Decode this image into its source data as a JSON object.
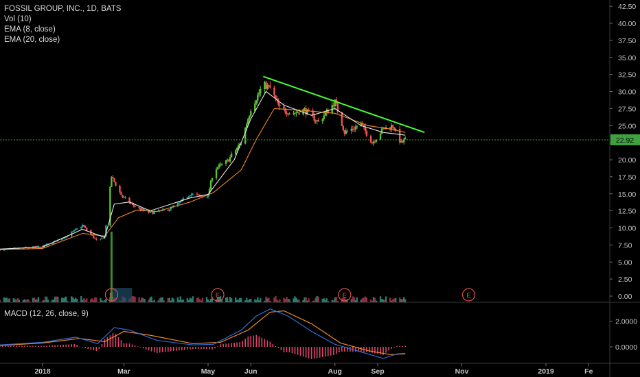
{
  "header": {
    "symbol_line": "FOSSIL GROUP, INC., 1D, BATS",
    "vol_line": "Vol (10)",
    "ema8_line": "EMA (8, close)",
    "ema20_line": "EMA (20, close)"
  },
  "macd": {
    "label": "MACD (12, 26, close, 9)"
  },
  "colors": {
    "background": "#000000",
    "up_candle": "#26a69a",
    "up_candle_bright": "#5bc236",
    "down_candle": "#ef5350",
    "ema8": "#e8e8e8",
    "ema20": "#f08a24",
    "trendline": "#44ff33",
    "last_price": "#3fa03f",
    "macd_line": "#2f6fd6",
    "signal_line": "#f08a24",
    "macd_hist": "#e0446c",
    "earnings": "#e0544c"
  },
  "chart_data": [
    {
      "type": "candlestick",
      "title": "FOSSIL GROUP, INC., 1D, BATS",
      "y_tick_labels": [
        "42.50",
        "40.00",
        "37.50",
        "35.00",
        "32.50",
        "30.00",
        "27.50",
        "25.00",
        "22.50",
        "20.00",
        "17.50",
        "15.00",
        "12.50",
        "10.00",
        "7.50",
        "5.00",
        "2.50",
        "0.00"
      ],
      "ylim": [
        0,
        42.5
      ],
      "x_tick_labels": [
        "2018",
        "Mar",
        "May",
        "Jun",
        "Aug",
        "Sep",
        "Nov",
        "2019",
        "Fe"
      ],
      "x_tick_dates": [
        "2018-01-01",
        "2018-03-01",
        "2018-05-01",
        "2018-06-01",
        "2018-08-01",
        "2018-09-01",
        "2018-11-01",
        "2019-01-01",
        "2019-02-01"
      ],
      "last_price": 22.92,
      "last_price_label": "22.92",
      "series": [
        {
          "name": "EMA (8, close)",
          "kind": "line"
        },
        {
          "name": "EMA (20, close)",
          "kind": "line"
        },
        {
          "name": "Vol (10)",
          "kind": "volume"
        }
      ],
      "price_path": [
        [
          "2017-12-01",
          6.8
        ],
        [
          "2017-12-15",
          7.0
        ],
        [
          "2018-01-01",
          7.3
        ],
        [
          "2018-01-10",
          8.0
        ],
        [
          "2018-01-20",
          9.0
        ],
        [
          "2018-01-30",
          10.4
        ],
        [
          "2018-02-05",
          9.0
        ],
        [
          "2018-02-10",
          8.0
        ],
        [
          "2018-02-15",
          8.7
        ],
        [
          "2018-02-20",
          17.5
        ],
        [
          "2018-02-28",
          14.5
        ],
        [
          "2018-03-10",
          13.0
        ],
        [
          "2018-03-20",
          12.2
        ],
        [
          "2018-04-01",
          12.6
        ],
        [
          "2018-04-10",
          13.6
        ],
        [
          "2018-04-18",
          15.0
        ],
        [
          "2018-04-28",
          14.5
        ],
        [
          "2018-05-01",
          14.8
        ],
        [
          "2018-05-05",
          18.5
        ],
        [
          "2018-05-15",
          19.8
        ],
        [
          "2018-05-25",
          22.5
        ],
        [
          "2018-06-01",
          27.5
        ],
        [
          "2018-06-10",
          31.0
        ],
        [
          "2018-06-15",
          30.5
        ],
        [
          "2018-06-22",
          27.5
        ],
        [
          "2018-07-01",
          26.8
        ],
        [
          "2018-07-10",
          27.3
        ],
        [
          "2018-07-20",
          25.5
        ],
        [
          "2018-08-01",
          28.5
        ],
        [
          "2018-08-08",
          24.0
        ],
        [
          "2018-08-20",
          25.2
        ],
        [
          "2018-08-28",
          22.5
        ],
        [
          "2018-09-05",
          24.5
        ],
        [
          "2018-09-12",
          25.0
        ],
        [
          "2018-09-18",
          22.4
        ],
        [
          "2018-09-21",
          22.92
        ]
      ],
      "ema8_path": [
        [
          "2017-12-01",
          6.9
        ],
        [
          "2018-01-01",
          7.2
        ],
        [
          "2018-01-30",
          9.8
        ],
        [
          "2018-02-15",
          8.6
        ],
        [
          "2018-02-22",
          13.5
        ],
        [
          "2018-03-05",
          13.8
        ],
        [
          "2018-03-20",
          12.5
        ],
        [
          "2018-04-18",
          14.4
        ],
        [
          "2018-05-01",
          14.9
        ],
        [
          "2018-05-20",
          20.0
        ],
        [
          "2018-06-01",
          26.0
        ],
        [
          "2018-06-12",
          30.0
        ],
        [
          "2018-06-25",
          28.0
        ],
        [
          "2018-07-15",
          26.5
        ],
        [
          "2018-08-01",
          27.5
        ],
        [
          "2018-08-20",
          25.0
        ],
        [
          "2018-09-05",
          24.0
        ],
        [
          "2018-09-21",
          23.6
        ]
      ],
      "ema20_path": [
        [
          "2017-12-01",
          6.8
        ],
        [
          "2018-01-01",
          7.0
        ],
        [
          "2018-01-30",
          9.2
        ],
        [
          "2018-02-15",
          8.8
        ],
        [
          "2018-02-25",
          11.5
        ],
        [
          "2018-03-10",
          12.6
        ],
        [
          "2018-03-25",
          12.4
        ],
        [
          "2018-04-18",
          13.8
        ],
        [
          "2018-05-05",
          15.2
        ],
        [
          "2018-05-25",
          18.5
        ],
        [
          "2018-06-05",
          23.0
        ],
        [
          "2018-06-18",
          27.5
        ],
        [
          "2018-07-05",
          27.3
        ],
        [
          "2018-08-01",
          26.8
        ],
        [
          "2018-08-25",
          25.0
        ],
        [
          "2018-09-10",
          24.5
        ],
        [
          "2018-09-21",
          24.0
        ]
      ],
      "trendline": {
        "from": [
          "2018-06-10",
          32.2
        ],
        "to": [
          "2018-10-05",
          24.0
        ]
      },
      "volume_spike": {
        "date": "2018-02-20"
      },
      "earnings_markers": [
        {
          "date": "2018-02-20",
          "label": "E"
        },
        {
          "date": "2018-05-08",
          "label": "E"
        },
        {
          "date": "2018-08-08",
          "label": "E"
        },
        {
          "date": "2018-11-06",
          "label": "E"
        }
      ]
    },
    {
      "type": "line",
      "title": "MACD (12, 26, close, 9)",
      "y_tick_labels": [
        "2.0000",
        "0.0000"
      ],
      "series": [
        {
          "name": "MACD",
          "points": [
            [
              "2017-12-01",
              0.15
            ],
            [
              "2018-01-01",
              0.35
            ],
            [
              "2018-01-25",
              0.75
            ],
            [
              "2018-02-10",
              0.25
            ],
            [
              "2018-02-22",
              1.5
            ],
            [
              "2018-03-05",
              1.3
            ],
            [
              "2018-03-25",
              0.5
            ],
            [
              "2018-04-20",
              0.15
            ],
            [
              "2018-05-05",
              0.2
            ],
            [
              "2018-05-25",
              1.3
            ],
            [
              "2018-06-05",
              2.4
            ],
            [
              "2018-06-15",
              2.95
            ],
            [
              "2018-06-28",
              2.4
            ],
            [
              "2018-07-15",
              1.2
            ],
            [
              "2018-08-01",
              0.2
            ],
            [
              "2018-08-20",
              -0.4
            ],
            [
              "2018-09-05",
              -0.9
            ],
            [
              "2018-09-15",
              -0.55
            ],
            [
              "2018-09-21",
              -0.5
            ]
          ]
        },
        {
          "name": "Signal",
          "points": [
            [
              "2017-12-01",
              0.1
            ],
            [
              "2018-01-01",
              0.3
            ],
            [
              "2018-01-28",
              0.65
            ],
            [
              "2018-02-15",
              0.4
            ],
            [
              "2018-03-01",
              1.2
            ],
            [
              "2018-03-20",
              0.9
            ],
            [
              "2018-04-20",
              0.25
            ],
            [
              "2018-05-10",
              0.35
            ],
            [
              "2018-05-30",
              1.3
            ],
            [
              "2018-06-15",
              2.7
            ],
            [
              "2018-06-25",
              2.8
            ],
            [
              "2018-07-15",
              1.8
            ],
            [
              "2018-08-05",
              0.3
            ],
            [
              "2018-08-25",
              -0.3
            ],
            [
              "2018-09-10",
              -0.6
            ],
            [
              "2018-09-21",
              -0.55
            ]
          ]
        }
      ]
    }
  ]
}
